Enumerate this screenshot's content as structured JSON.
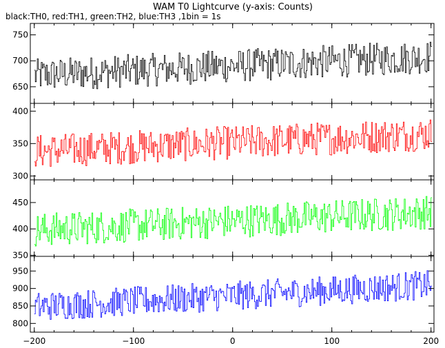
{
  "title": "WAM T0 Lightcurve (y-axis: Counts)",
  "subtitle": "black:TH0, red:TH1, green:TH2, blue:TH3 ,1bin = 1s",
  "chart_data": {
    "type": "line",
    "title": "WAM T0 Lightcurve (y-axis: Counts)",
    "subtitle": "black:TH0, red:TH1, green:TH2, blue:TH3 ,1bin = 1s",
    "xlabel": "",
    "ylabel": "Counts",
    "xlim": [
      -204,
      203
    ],
    "bin_seconds": 1,
    "x_ticks": [
      -200,
      -100,
      0,
      100,
      200
    ],
    "panels": [
      {
        "name": "TH0",
        "color": "#000000",
        "ylim": [
          618,
          772
        ],
        "y_ticks": [
          650,
          700,
          750
        ],
        "trend": {
          "start": 672,
          "end": 708
        },
        "noise_half_range": 32,
        "sample_points": [
          [
            -200,
            672
          ],
          [
            -100,
            681
          ],
          [
            0,
            690
          ],
          [
            100,
            699
          ],
          [
            200,
            708
          ]
        ]
      },
      {
        "name": "TH1",
        "color": "#ff0000",
        "ylim": [
          294,
          412
        ],
        "y_ticks": [
          300,
          350,
          400
        ],
        "trend": {
          "start": 338,
          "end": 365
        },
        "noise_half_range": 26,
        "sample_points": [
          [
            -200,
            338
          ],
          [
            -100,
            345
          ],
          [
            0,
            351
          ],
          [
            100,
            358
          ],
          [
            200,
            365
          ]
        ]
      },
      {
        "name": "TH2",
        "color": "#00ff00",
        "ylim": [
          348,
          493
        ],
        "y_ticks": [
          350,
          400,
          450
        ],
        "trend": {
          "start": 398,
          "end": 432
        },
        "noise_half_range": 32,
        "sample_points": [
          [
            -200,
            398
          ],
          [
            -100,
            406
          ],
          [
            0,
            415
          ],
          [
            100,
            423
          ],
          [
            200,
            432
          ]
        ]
      },
      {
        "name": "TH3",
        "color": "#0000ff",
        "ylim": [
          775,
          992
        ],
        "y_ticks": [
          800,
          850,
          900,
          950
        ],
        "trend": {
          "start": 848,
          "end": 910
        },
        "noise_half_range": 42,
        "sample_points": [
          [
            -200,
            848
          ],
          [
            -100,
            864
          ],
          [
            0,
            879
          ],
          [
            100,
            895
          ],
          [
            200,
            910
          ]
        ]
      }
    ]
  }
}
